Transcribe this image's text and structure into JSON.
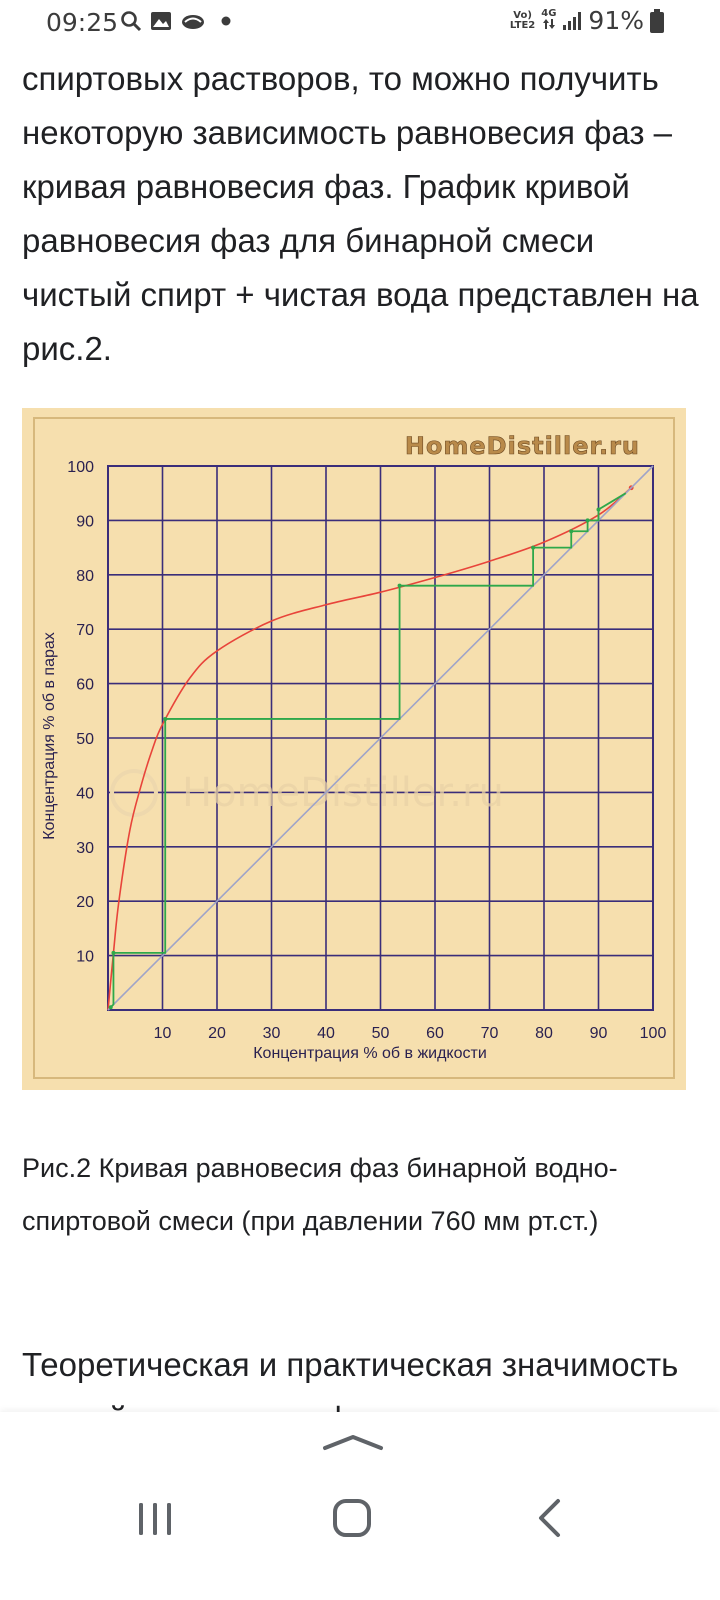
{
  "status_bar": {
    "time": "09:25",
    "left_icons": [
      "search-icon",
      "image-icon",
      "cloud-icon",
      "dot-icon"
    ],
    "network_top": "Vo)",
    "network_bottom": "LTE2",
    "network_type": "4G",
    "battery": "91%"
  },
  "article": {
    "paragraph": "спиртовых растворов, то можно получить некоторую зависимость равновесия фаз – кривая равновесия фаз. График кривой равновесия фаз для бинарной смеси чистый спирт + чистая вода представлен на рис.2.",
    "caption": "Рис.2 Кривая равновесия фаз бинарной водно-спиртовой смеси (при давлении 760 мм рт.ст.)",
    "next_heading": "Теоретическая и практическая значимость кривой равновесия фаз с"
  },
  "figure": {
    "watermark_top": "HomeDistiller.ru",
    "watermark_center": "HomeDistiller.ru",
    "colors": {
      "background": "#f6dfae",
      "grid": "#3a2d7a",
      "equilibrium": "#e8443a",
      "steps": "#2ea84a",
      "diagonal": "#9fa4c8"
    }
  },
  "chart_data": {
    "type": "line",
    "xlabel": "Концентрация % об в жидкости",
    "ylabel": "Концентрация % об в парах",
    "xlim": [
      0,
      100
    ],
    "ylim": [
      0,
      100
    ],
    "x_ticks": [
      "10",
      "20",
      "30",
      "40",
      "50",
      "60",
      "70",
      "80",
      "90",
      "100"
    ],
    "y_ticks": [
      "10",
      "20",
      "30",
      "40",
      "50",
      "60",
      "70",
      "80",
      "90",
      "100"
    ],
    "grid": true,
    "series": [
      {
        "kind": "equilibrium",
        "x": [
          0,
          1,
          2,
          4,
          6,
          8,
          10,
          15,
          20,
          30,
          40,
          50,
          60,
          70,
          80,
          90,
          96
        ],
        "y": [
          0,
          10.5,
          20,
          33,
          41,
          47.5,
          52.5,
          61,
          66,
          71.5,
          74.5,
          76.8,
          79.5,
          82.5,
          86,
          91,
          96
        ]
      },
      {
        "kind": "diagonal",
        "x": [
          0,
          100
        ],
        "y": [
          0,
          100
        ]
      },
      {
        "kind": "steps",
        "x": [
          0.5,
          1,
          1,
          10.5,
          10.5,
          53.5,
          53.5,
          78,
          78,
          85,
          85,
          88,
          88,
          90,
          90,
          95
        ],
        "y": [
          0.5,
          1,
          10.5,
          10.5,
          53.5,
          53.5,
          78,
          78,
          85,
          85,
          88,
          88,
          90,
          90,
          92,
          95
        ]
      }
    ]
  }
}
